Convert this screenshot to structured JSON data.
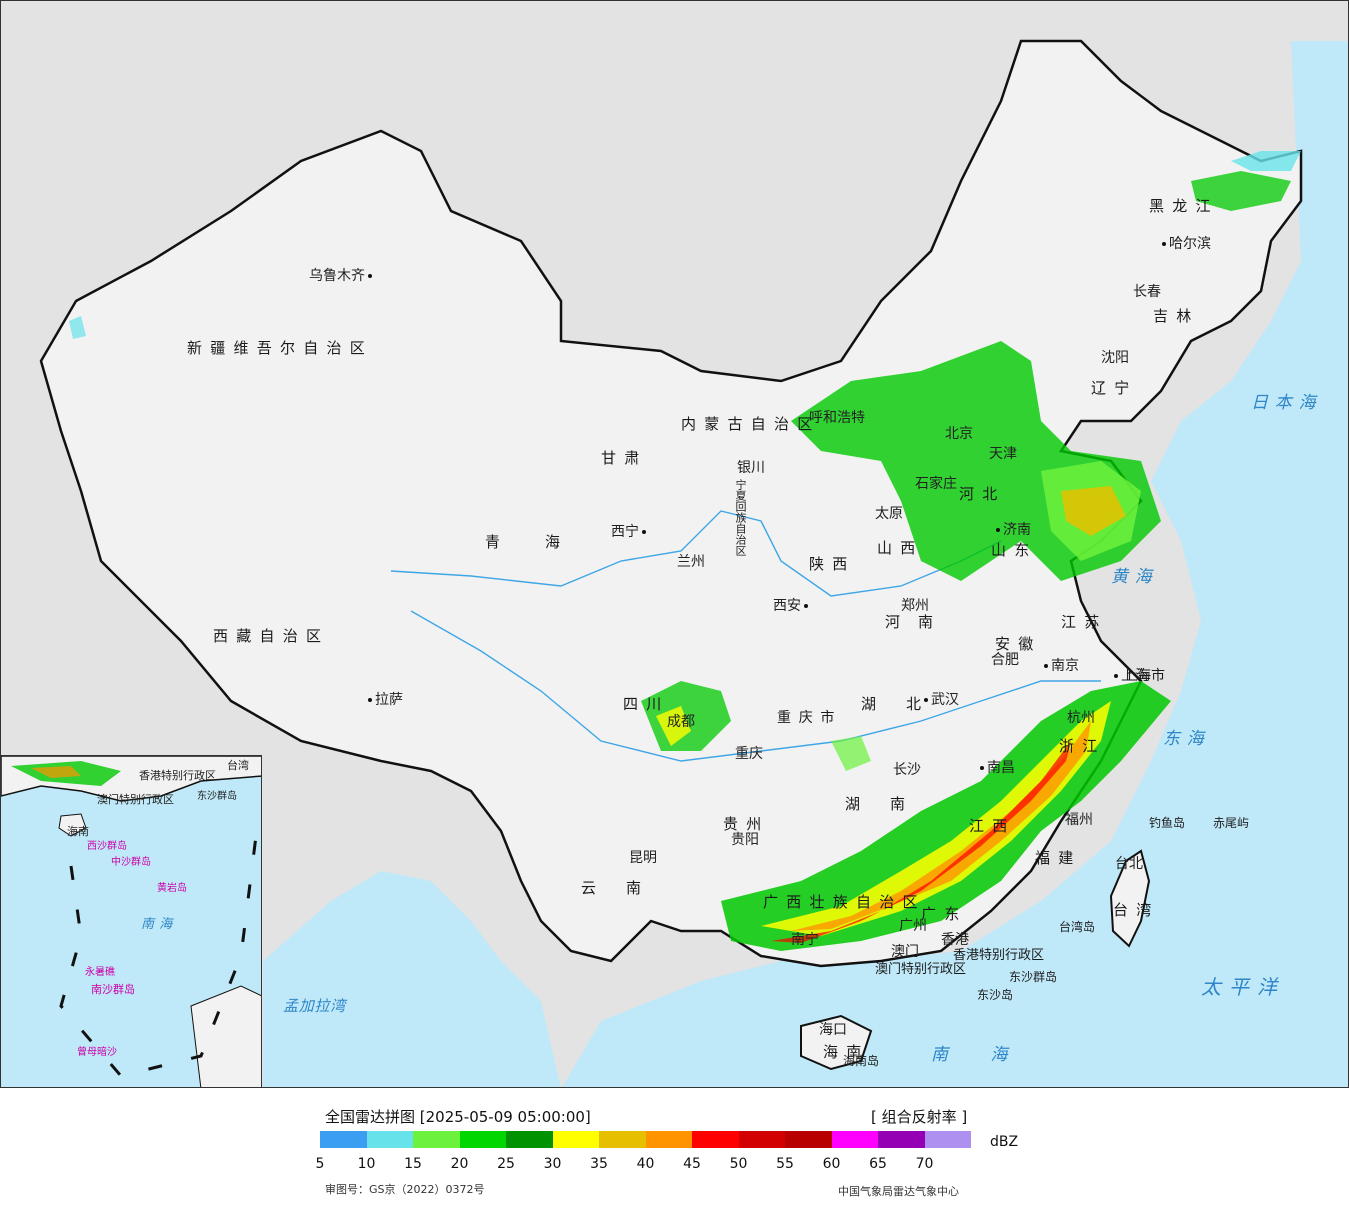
{
  "colors": {
    "sea": "#bfe8f8",
    "land": "#f2f2f2",
    "outside": "#e3e3e3",
    "border": "#111111",
    "river": "#3fa6e6"
  },
  "cities": [
    {
      "name": "乌鲁木齐"
    },
    {
      "name": "拉萨"
    },
    {
      "name": "西宁"
    },
    {
      "name": "兰州"
    },
    {
      "name": "银川"
    },
    {
      "name": "呼和浩特"
    },
    {
      "name": "太原"
    },
    {
      "name": "石家庄"
    },
    {
      "name": "北京"
    },
    {
      "name": "天津"
    },
    {
      "name": "济南"
    },
    {
      "name": "郑州"
    },
    {
      "name": "西安"
    },
    {
      "name": "成都"
    },
    {
      "name": "重庆"
    },
    {
      "name": "贵阳"
    },
    {
      "name": "昆明"
    },
    {
      "name": "南宁"
    },
    {
      "name": "长沙"
    },
    {
      "name": "武汉"
    },
    {
      "name": "合肥"
    },
    {
      "name": "南京"
    },
    {
      "name": "上海"
    },
    {
      "name": "杭州"
    },
    {
      "name": "南昌"
    },
    {
      "name": "福州"
    },
    {
      "name": "台北"
    },
    {
      "name": "广州"
    },
    {
      "name": "香港"
    },
    {
      "name": "澳门"
    },
    {
      "name": "海口"
    },
    {
      "name": "沈阳"
    },
    {
      "name": "长春"
    },
    {
      "name": "哈尔滨"
    }
  ],
  "provinces": [
    "新疆维吾尔自治区",
    "西藏自治区",
    "青海",
    "甘肃",
    "内蒙古自治区",
    "宁夏回族自治区",
    "陕西",
    "山西",
    "河北",
    "山东",
    "河南",
    "四川",
    "重庆市",
    "贵州",
    "云南",
    "广西壮族自治区",
    "湖南",
    "湖北",
    "安徽",
    "江苏",
    "上海市",
    "浙江",
    "江西",
    "福建",
    "台湾",
    "广东",
    "香港特别行政区",
    "澳门特别行政区",
    "海南",
    "辽宁",
    "吉林",
    "黑龙江",
    "北京",
    "天津"
  ],
  "seas": [
    "日本海",
    "黄海",
    "东海",
    "太平洋",
    "南海",
    "孟加拉湾"
  ],
  "islands": [
    "钓鱼岛",
    "赤尾屿",
    "台湾岛",
    "东沙群岛",
    "东沙岛",
    "海南岛"
  ],
  "inset": {
    "labels": [
      "香港特别行政区",
      "澳门特别行政区",
      "台湾",
      "东沙群岛",
      "海南",
      "西沙群岛",
      "中沙群岛",
      "黄岩岛",
      "南海",
      "永暑礁",
      "南沙群岛",
      "曾母暗沙"
    ]
  },
  "legend": {
    "title": "全国雷达拼图 [2025-05-09 05:00:00]",
    "product": "[ 组合反射率 ]",
    "unit": "dBZ",
    "ticks": [
      "5",
      "10",
      "15",
      "20",
      "25",
      "30",
      "35",
      "40",
      "45",
      "50",
      "55",
      "60",
      "65",
      "70"
    ],
    "colors": [
      "#3c9ef0",
      "#66e3ea",
      "#6cf23c",
      "#00d600",
      "#009200",
      "#ffff00",
      "#e6c000",
      "#ff9400",
      "#ff0000",
      "#d20000",
      "#b80000",
      "#ff00ff",
      "#9600b4",
      "#ae90f0"
    ],
    "approval": "审图号：GS京（2022）0372号",
    "source": "中国气象局雷达气象中心"
  }
}
